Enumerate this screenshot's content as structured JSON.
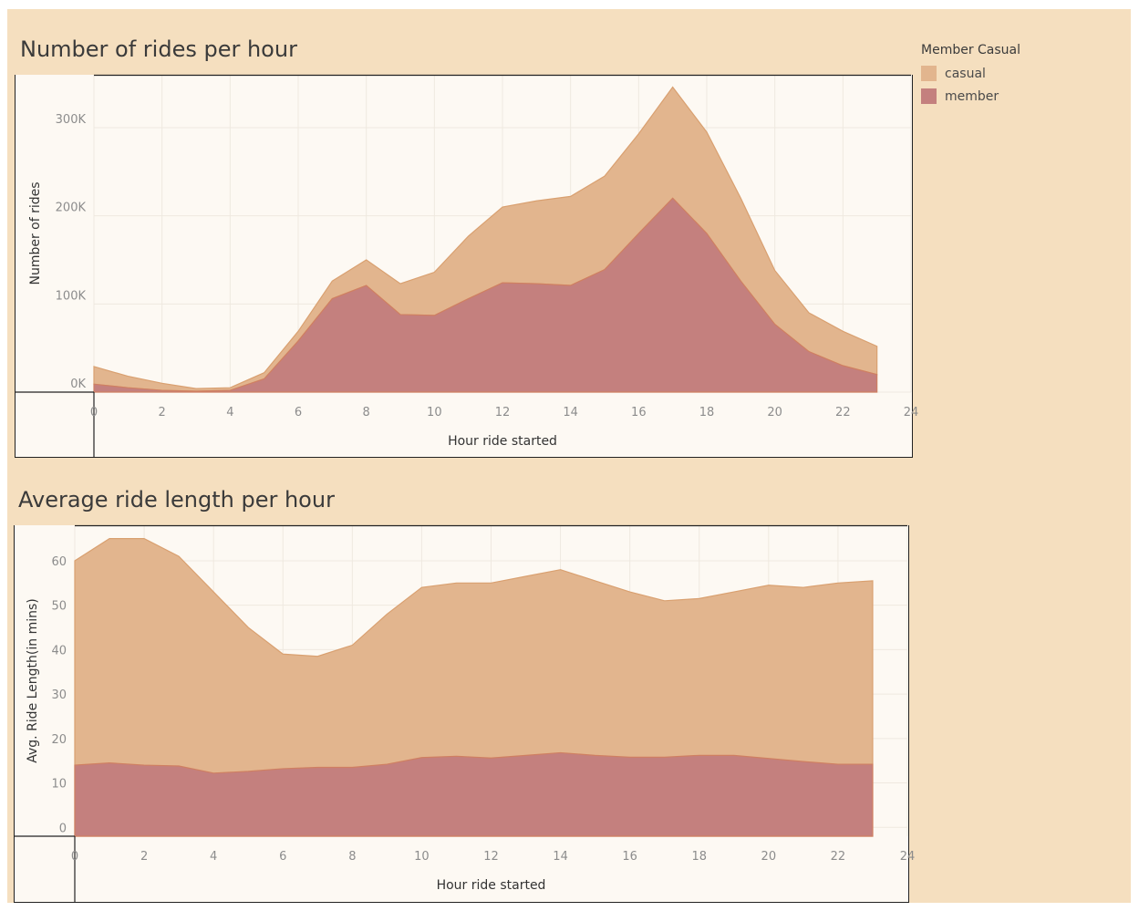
{
  "legend": {
    "title": "Member Casual",
    "items": [
      {
        "label": "casual",
        "color": "#e2b58e"
      },
      {
        "label": "member",
        "color": "#c4807e"
      }
    ]
  },
  "chart_data": [
    {
      "type": "area",
      "stacked": true,
      "title": "Number of rides per hour",
      "xlabel": "Hour ride started",
      "ylabel": "Number of rides",
      "xlim": [
        0,
        24
      ],
      "ylim": [
        0,
        360000
      ],
      "xticks": [
        0,
        2,
        4,
        6,
        8,
        10,
        12,
        14,
        16,
        18,
        20,
        22,
        24
      ],
      "yticks": [
        {
          "value": 0,
          "label": "0K"
        },
        {
          "value": 100000,
          "label": "100K"
        },
        {
          "value": 200000,
          "label": "200K"
        },
        {
          "value": 300000,
          "label": "300K"
        }
      ],
      "x": [
        0,
        1,
        2,
        3,
        4,
        5,
        6,
        7,
        8,
        9,
        10,
        11,
        12,
        13,
        14,
        15,
        16,
        17,
        18,
        19,
        20,
        21,
        22,
        23
      ],
      "series": [
        {
          "name": "member",
          "color": "#c4807e",
          "values": [
            9000,
            5000,
            2000,
            1000,
            2000,
            15000,
            58000,
            106000,
            121000,
            88000,
            87000,
            106000,
            124000,
            123000,
            121000,
            139000,
            180000,
            220000,
            180000,
            126000,
            77000,
            46000,
            30000,
            20000
          ]
        },
        {
          "name": "casual",
          "color": "#e2b58e",
          "values": [
            20000,
            13000,
            8000,
            3000,
            3000,
            7000,
            11000,
            20000,
            29000,
            35000,
            49000,
            71000,
            86000,
            94000,
            101000,
            106000,
            113000,
            126000,
            115000,
            94000,
            61000,
            44000,
            39000,
            32000
          ]
        }
      ],
      "grid": true
    },
    {
      "type": "area",
      "stacked": false,
      "title": "Average ride length per hour",
      "xlabel": "Hour ride started",
      "ylabel": "Avg. Ride Length(in mins)",
      "xlim": [
        0,
        24
      ],
      "ylim": [
        -2,
        68
      ],
      "xticks": [
        0,
        2,
        4,
        6,
        8,
        10,
        12,
        14,
        16,
        18,
        20,
        22,
        24
      ],
      "yticks": [
        {
          "value": 0,
          "label": "0"
        },
        {
          "value": 10,
          "label": "10"
        },
        {
          "value": 20,
          "label": "20"
        },
        {
          "value": 30,
          "label": "30"
        },
        {
          "value": 40,
          "label": "40"
        },
        {
          "value": 50,
          "label": "50"
        },
        {
          "value": 60,
          "label": "60"
        }
      ],
      "x": [
        0,
        1,
        2,
        3,
        4,
        5,
        6,
        7,
        8,
        9,
        10,
        11,
        12,
        13,
        14,
        15,
        16,
        17,
        18,
        19,
        20,
        21,
        22,
        23
      ],
      "series": [
        {
          "name": "casual",
          "color": "#e2b58e",
          "values": [
            60,
            65,
            65,
            61,
            53,
            45,
            39,
            38.5,
            41,
            48,
            54,
            55,
            55,
            56.5,
            58,
            55.5,
            53,
            51,
            51.5,
            53,
            54.5,
            54,
            55,
            55.5
          ]
        },
        {
          "name": "member",
          "color": "#c4807e",
          "values": [
            14,
            14.5,
            14,
            13.8,
            12.2,
            12.6,
            13.2,
            13.5,
            13.5,
            14.2,
            15.7,
            16,
            15.6,
            16.2,
            16.8,
            16.2,
            15.8,
            15.8,
            16.2,
            16.2,
            15.5,
            14.8,
            14.2,
            14.2
          ]
        }
      ],
      "grid": true
    }
  ]
}
